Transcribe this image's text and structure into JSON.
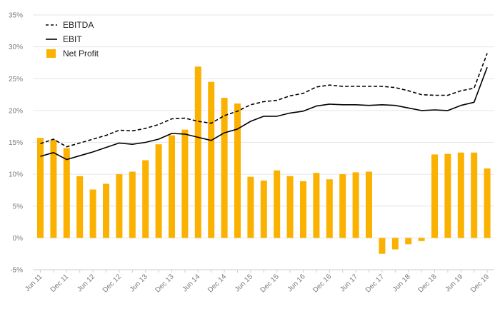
{
  "chart_data": {
    "type": "bar",
    "title": "",
    "xlabel": "",
    "ylabel": "",
    "ylim": [
      -5,
      35
    ],
    "yticks": [
      -5,
      0,
      5,
      10,
      15,
      20,
      25,
      30,
      35
    ],
    "ytick_labels": [
      "-5%",
      "0%",
      "5%",
      "10%",
      "15%",
      "20%",
      "25%",
      "30%",
      "35%"
    ],
    "grid": true,
    "legend_position": "top-left",
    "categories": [
      "Jun 11",
      "Sep 11",
      "Dec 11",
      "Mar 12",
      "Jun 12",
      "Sep 12",
      "Dec 12",
      "Mar 13",
      "Jun 13",
      "Sep 13",
      "Dec 13",
      "Mar 14",
      "Jun 14",
      "Sep 14",
      "Dec 14",
      "Mar 15",
      "Jun 15",
      "Sep 15",
      "Dec 15",
      "Mar 16",
      "Jun 16",
      "Sep 16",
      "Dec 16",
      "Mar 17",
      "Jun 17",
      "Sep 17",
      "Dec 17",
      "Mar 18",
      "Jun 18",
      "Sep 18",
      "Dec 18",
      "Mar 19",
      "Jun 19",
      "Sep 19",
      "Dec 19"
    ],
    "x_tick_labels": [
      "Jun 11",
      "Dec 11",
      "Jun 12",
      "Dec 12",
      "Jun 13",
      "Dec 13",
      "Jun 14",
      "Dec 14",
      "Jun 15",
      "Dec 15",
      "Jun 16",
      "Dec 16",
      "Jun 17",
      "Dec 17",
      "Jun 18",
      "Dec 18",
      "Jun 19",
      "Dec 19"
    ],
    "series": [
      {
        "name": "EBITDA",
        "kind": "line",
        "style": "dashed",
        "color": "#000000",
        "values": [
          14.8,
          15.5,
          14.3,
          14.9,
          15.5,
          16.1,
          16.9,
          16.8,
          17.2,
          17.8,
          18.7,
          18.8,
          18.3,
          18.0,
          19.2,
          19.9,
          20.9,
          21.4,
          21.6,
          22.3,
          22.7,
          23.7,
          24.0,
          23.8,
          23.8,
          23.8,
          23.8,
          23.6,
          23.1,
          22.5,
          22.4,
          22.4,
          23.1,
          23.5,
          29.0
        ]
      },
      {
        "name": "EBIT",
        "kind": "line",
        "style": "solid",
        "color": "#000000",
        "values": [
          12.8,
          13.4,
          12.3,
          12.9,
          13.5,
          14.2,
          14.9,
          14.7,
          15.0,
          15.5,
          16.4,
          16.3,
          15.8,
          15.3,
          16.5,
          17.1,
          18.3,
          19.1,
          19.1,
          19.6,
          19.9,
          20.7,
          21.0,
          20.9,
          20.9,
          20.8,
          20.9,
          20.8,
          20.4,
          20.0,
          20.1,
          20.0,
          20.8,
          21.3,
          26.8
        ]
      },
      {
        "name": "Net Profit",
        "kind": "bar",
        "color": "#FBB100",
        "values": [
          15.7,
          15.4,
          14.1,
          9.7,
          7.6,
          8.5,
          10.0,
          10.4,
          12.2,
          14.7,
          16.1,
          17.0,
          26.9,
          24.5,
          22.0,
          21.1,
          9.6,
          9.0,
          10.6,
          9.7,
          8.9,
          10.2,
          9.2,
          10.0,
          10.3,
          10.4,
          -2.5,
          -1.8,
          -1.0,
          -0.5,
          13.1,
          13.2,
          13.4,
          13.4,
          10.9
        ]
      }
    ]
  }
}
